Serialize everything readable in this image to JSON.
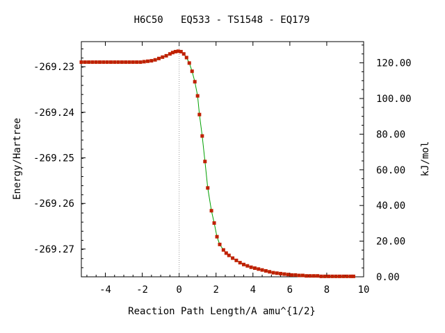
{
  "chart_data": {
    "type": "scatter",
    "title": "H6C50   EQ533 - TS1548 - EQ179",
    "xlabel": "Reaction Path Length/A amu^{1/2}",
    "ylabel": "Energy/Hartree",
    "y2label": "kJ/mol",
    "xlim": [
      -5.3,
      10
    ],
    "ylim": [
      -269.2761,
      -269.2245
    ],
    "y2lim": [
      0,
      131.9
    ],
    "x_ticks": [
      -4,
      -2,
      0,
      2,
      4,
      6,
      8,
      10
    ],
    "x_tick_labels": [
      "-4",
      "-2",
      "0",
      "2",
      "4",
      "6",
      "8",
      "10"
    ],
    "y_ticks": [
      -269.23,
      -269.24,
      -269.25,
      -269.26,
      -269.27
    ],
    "y_tick_labels": [
      "-269.23",
      "-269.24",
      "-269.25",
      "-269.26",
      "-269.27"
    ],
    "y2_ticks": [
      0,
      20,
      40,
      60,
      80,
      100,
      120
    ],
    "y2_tick_labels": [
      "0.00",
      "20.00",
      "40.00",
      "60.00",
      "80.00",
      "100.00",
      "120.00"
    ],
    "ts_marker_x": 0,
    "series": [
      {
        "color": "#00a000",
        "marker_color": "#c02000",
        "points": [
          [
            -5.3,
            -269.229
          ],
          [
            -5.1,
            -269.229
          ],
          [
            -4.9,
            -269.229
          ],
          [
            -4.7,
            -269.229
          ],
          [
            -4.5,
            -269.229
          ],
          [
            -4.3,
            -269.229
          ],
          [
            -4.1,
            -269.229
          ],
          [
            -3.9,
            -269.229
          ],
          [
            -3.7,
            -269.229
          ],
          [
            -3.5,
            -269.229
          ],
          [
            -3.3,
            -269.229
          ],
          [
            -3.1,
            -269.229
          ],
          [
            -2.9,
            -269.229
          ],
          [
            -2.7,
            -269.229
          ],
          [
            -2.5,
            -269.229
          ],
          [
            -2.3,
            -269.229
          ],
          [
            -2.1,
            -269.229
          ],
          [
            -1.9,
            -269.2289
          ],
          [
            -1.7,
            -269.2288
          ],
          [
            -1.5,
            -269.2287
          ],
          [
            -1.3,
            -269.2285
          ],
          [
            -1.1,
            -269.2282
          ],
          [
            -0.9,
            -269.2279
          ],
          [
            -0.7,
            -269.2276
          ],
          [
            -0.5,
            -269.2272
          ],
          [
            -0.35,
            -269.2269
          ],
          [
            -0.2,
            -269.2267
          ],
          [
            -0.05,
            -269.2266
          ],
          [
            0.1,
            -269.2267
          ],
          [
            0.25,
            -269.2272
          ],
          [
            0.4,
            -269.228
          ],
          [
            0.55,
            -269.2292
          ],
          [
            0.7,
            -269.231
          ],
          [
            0.85,
            -269.2333
          ],
          [
            1.0,
            -269.2364
          ],
          [
            1.1,
            -269.2405
          ],
          [
            1.25,
            -269.2452
          ],
          [
            1.4,
            -269.2508
          ],
          [
            1.55,
            -269.2566
          ],
          [
            1.75,
            -269.2616
          ],
          [
            1.9,
            -269.2643
          ],
          [
            2.05,
            -269.2673
          ],
          [
            2.2,
            -269.269
          ],
          [
            2.4,
            -269.2702
          ],
          [
            2.55,
            -269.2709
          ],
          [
            2.7,
            -269.2714
          ],
          [
            2.9,
            -269.272
          ],
          [
            3.1,
            -269.2725
          ],
          [
            3.3,
            -269.273
          ],
          [
            3.5,
            -269.2734
          ],
          [
            3.7,
            -269.2737
          ],
          [
            3.9,
            -269.274
          ],
          [
            4.1,
            -269.2742
          ],
          [
            4.3,
            -269.2744
          ],
          [
            4.5,
            -269.2746
          ],
          [
            4.7,
            -269.2748
          ],
          [
            4.9,
            -269.275
          ],
          [
            5.1,
            -269.2752
          ],
          [
            5.3,
            -269.2753
          ],
          [
            5.5,
            -269.2754
          ],
          [
            5.7,
            -269.2755
          ],
          [
            5.9,
            -269.2756
          ],
          [
            6.1,
            -269.2757
          ],
          [
            6.3,
            -269.2757
          ],
          [
            6.5,
            -269.2758
          ],
          [
            6.7,
            -269.2758
          ],
          [
            6.9,
            -269.2759
          ],
          [
            7.1,
            -269.2759
          ],
          [
            7.3,
            -269.2759
          ],
          [
            7.5,
            -269.2759
          ],
          [
            7.7,
            -269.276
          ],
          [
            7.9,
            -269.276
          ],
          [
            8.1,
            -269.276
          ],
          [
            8.3,
            -269.276
          ],
          [
            8.5,
            -269.276
          ],
          [
            8.7,
            -269.276
          ],
          [
            8.9,
            -269.276
          ],
          [
            9.1,
            -269.276
          ],
          [
            9.3,
            -269.276
          ],
          [
            9.45,
            -269.276
          ]
        ]
      }
    ]
  }
}
